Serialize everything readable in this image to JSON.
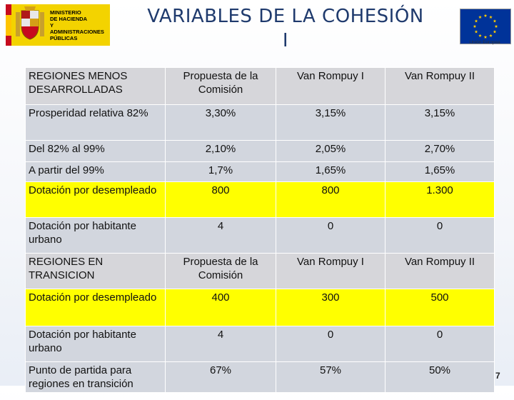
{
  "header": {
    "ministry_logo_text": [
      "MINISTERIO",
      "DE HACIENDA",
      "Y ADMINISTRACIONES",
      "PÚBLICAS"
    ],
    "title_line1": "VARIABLES DE LA COHESIÓN",
    "title_line2": "I",
    "eu_caption": "Unión Europea"
  },
  "colors": {
    "title": "#1f3a6d",
    "highlight_row": "#ffff00",
    "header_row": "#d6d6da",
    "plain_row": "#d2d6de",
    "eu_blue": "#003399",
    "eu_star": "#ffcc00"
  },
  "table": {
    "section1": {
      "header": [
        "REGIONES MENOS DESARROLLADAS",
        "Propuesta de la Comisión",
        "Van Rompuy I",
        "Van Rompuy II"
      ],
      "rows": [
        {
          "label": "Prosperidad relativa 82%",
          "values": [
            "3,30%",
            "3,15%",
            "3,15%"
          ],
          "highlight": false
        },
        {
          "label": "Del 82% al 99%",
          "values": [
            "2,10%",
            "2,05%",
            "2,70%"
          ],
          "highlight": false
        },
        {
          "label": "A partir del 99%",
          "values": [
            "1,7%",
            "1,65%",
            "1,65%"
          ],
          "highlight": false
        },
        {
          "label": "Dotación por desempleado",
          "values": [
            "800",
            "800",
            "1.300"
          ],
          "highlight": true
        },
        {
          "label": "Dotación por habitante urbano",
          "values": [
            "4",
            "0",
            "0"
          ],
          "highlight": false
        }
      ]
    },
    "section2": {
      "header": [
        "REGIONES EN TRANSICION",
        "Propuesta de la Comisión",
        "Van Rompuy I",
        "Van Rompuy II"
      ],
      "rows": [
        {
          "label": "Dotación por desempleado",
          "values": [
            "400",
            "300",
            "500"
          ],
          "highlight": true
        },
        {
          "label": "Dotación por habitante urbano",
          "values": [
            "4",
            "0",
            "0"
          ],
          "highlight": false
        },
        {
          "label": "Punto de partida para regiones en transición",
          "values": [
            "67%",
            "57%",
            "50%"
          ],
          "highlight": false
        }
      ]
    }
  },
  "page_number": "7"
}
